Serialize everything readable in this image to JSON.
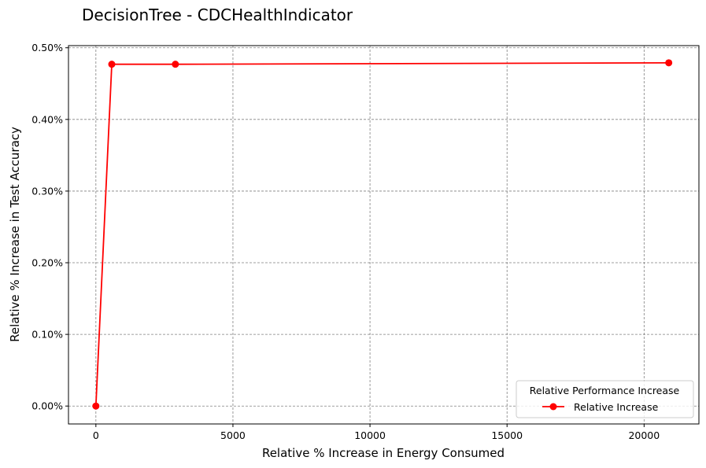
{
  "chart_data": {
    "type": "line",
    "title": "DecisionTree - CDCHealthIndicator",
    "xlabel": "Relative % Increase in Energy Consumed",
    "ylabel": "Relative % Increase in Test Accuracy",
    "xlim": [
      -1000,
      22000
    ],
    "ylim": [
      -0.025,
      0.503
    ],
    "x_ticks": [
      0,
      5000,
      10000,
      15000,
      20000
    ],
    "x_tick_labels": [
      "0",
      "5000",
      "10000",
      "15000",
      "20000"
    ],
    "y_ticks": [
      0.0,
      0.1,
      0.2,
      0.3,
      0.4,
      0.5
    ],
    "y_tick_labels": [
      "0.00%",
      "0.10%",
      "0.20%",
      "0.30%",
      "0.40%",
      "0.50%"
    ],
    "grid": true,
    "legend": {
      "title": "Relative Performance Increase",
      "placement": "bottom-right"
    },
    "series": [
      {
        "name": "Relative Increase",
        "color": "#ff0000",
        "marker": "circle",
        "x": [
          0,
          580,
          2900,
          20900
        ],
        "y": [
          0.0,
          0.477,
          0.477,
          0.479
        ]
      }
    ]
  }
}
